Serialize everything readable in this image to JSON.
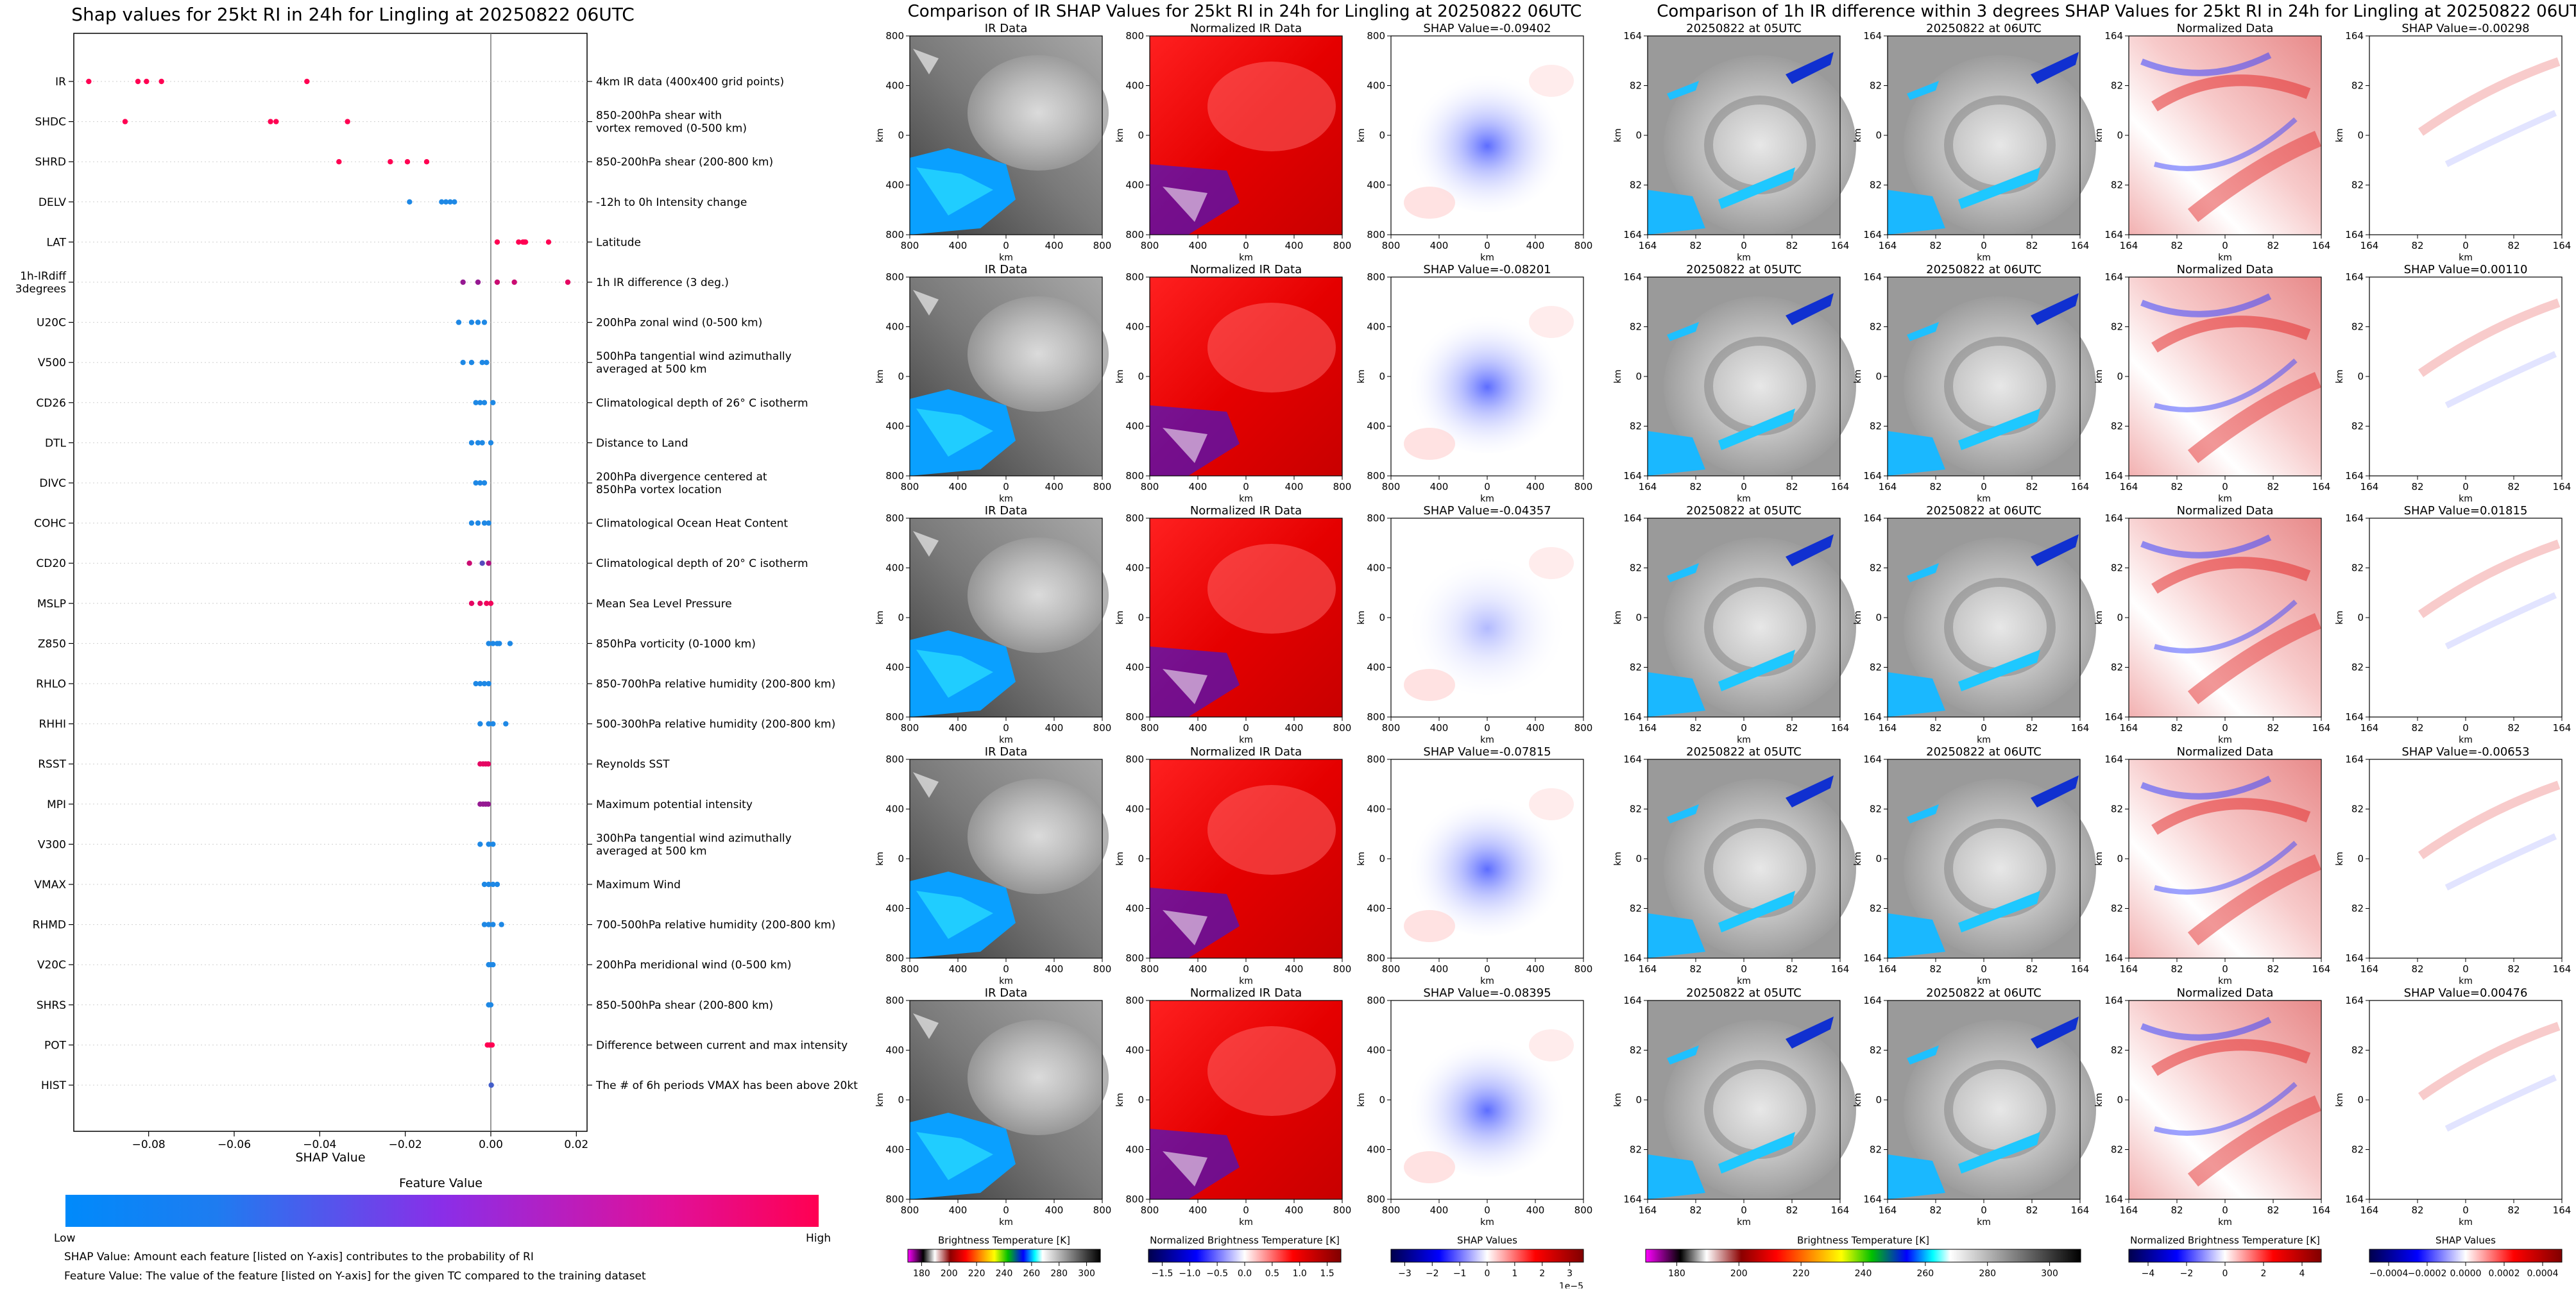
{
  "shap_panel": {
    "title": "Shap values for 25kt RI in 24h for Lingling at 20250822 06UTC",
    "xlabel": "SHAP Value",
    "colorbar_title": "Feature Value",
    "colorbar_low": "Low",
    "colorbar_high": "High",
    "note_shap": "SHAP Value: Amount each feature [listed on Y-axis] contributes to the probability of RI",
    "note_feature": "Feature Value: The value of the feature [listed on Y-axis] for the given TC compared to the training dataset",
    "colors": {
      "low": "#1e88e5",
      "mid": "#7b1fa2",
      "high": "#ff0052"
    }
  },
  "ir_panel_title": "Comparison of IR SHAP Values for 25kt RI in 24h for Lingling at 20250822 06UTC",
  "diff_panel_title": "Comparison of 1h IR difference within 3 degrees SHAP Values for 25kt RI in 24h for Lingling at 20250822 06UTC",
  "ir_columns": [
    "IR Data",
    "Normalized IR Data"
  ],
  "ir_shap_titles": [
    "SHAP Value=-0.09402",
    "SHAP Value=-0.08201",
    "SHAP Value=-0.04357",
    "SHAP Value=-0.07815",
    "SHAP Value=-0.08395"
  ],
  "ir_ticks": [
    "800",
    "400",
    "0",
    "400",
    "800"
  ],
  "diff_columns": [
    "20250822 at 05UTC",
    "20250822 at 06UTC",
    "Normalized Data"
  ],
  "diff_shap_titles": [
    "SHAP Value=-0.00298",
    "SHAP Value=0.00110",
    "SHAP Value=0.01815",
    "SHAP Value=-0.00653",
    "SHAP Value=0.00476"
  ],
  "diff_ticks": [
    "164",
    "82",
    "0",
    "82",
    "164"
  ],
  "axis_unit": "km",
  "colorbars": {
    "ir_bt": {
      "label": "Brightness Temperature [K]",
      "ticks": [
        "180",
        "200",
        "220",
        "240",
        "260",
        "280",
        "300"
      ]
    },
    "ir_norm": {
      "label": "Normalized Brightness Temperature [K]",
      "ticks": [
        "−1.5",
        "−1.0",
        "−0.5",
        "0.0",
        "0.5",
        "1.0",
        "1.5"
      ]
    },
    "ir_shap": {
      "label": "SHAP Values",
      "ticks": [
        "−3",
        "−2",
        "−1",
        "0",
        "1",
        "2",
        "3"
      ],
      "offset": "1e−5"
    },
    "diff_bt": {
      "label": "Brightness Temperature [K]",
      "ticks": [
        "180",
        "200",
        "220",
        "240",
        "260",
        "280",
        "300"
      ]
    },
    "diff_norm": {
      "label": "Normalized Brightness Temperature [K]",
      "ticks": [
        "−4",
        "−2",
        "0",
        "2",
        "4"
      ]
    },
    "diff_shap": {
      "label": "SHAP Values",
      "ticks": [
        "−0.0004",
        "−0.0002",
        "0.0000",
        "0.0002",
        "0.0004"
      ]
    }
  },
  "chart_data": {
    "type": "scatter",
    "title": "Shap values for 25kt RI in 24h for Lingling at 20250822 06UTC",
    "xlabel": "SHAP Value",
    "xlim": [
      -0.0975,
      0.0225
    ],
    "xticks": [
      -0.08,
      -0.06,
      -0.04,
      -0.02,
      0.0,
      0.02
    ],
    "xtick_labels": [
      "−0.08",
      "−0.06",
      "−0.04",
      "−0.02",
      "0.00",
      "0.02"
    ],
    "features": [
      {
        "name": "IR",
        "description": "4km IR data (400x400 grid points)",
        "x": [
          -0.094,
          -0.0825,
          -0.0805,
          -0.077,
          -0.043
        ],
        "f": [
          1,
          1,
          1,
          1,
          1
        ]
      },
      {
        "name": "SHDC",
        "description": "850-200hPa shear with\nvortex removed (0-500 km)",
        "x": [
          -0.0855,
          -0.0515,
          -0.0502,
          -0.0335
        ],
        "f": [
          1,
          1,
          1,
          1
        ]
      },
      {
        "name": "SHRD",
        "description": "850-200hPa shear (200-800 km)",
        "x": [
          -0.0355,
          -0.0235,
          -0.0195,
          -0.015
        ],
        "f": [
          1,
          1,
          1,
          1
        ]
      },
      {
        "name": "DELV",
        "description": "-12h to 0h Intensity change",
        "x": [
          -0.019,
          -0.0115,
          -0.0105,
          -0.0095,
          -0.0085
        ],
        "f": [
          0,
          0,
          0,
          0,
          0
        ]
      },
      {
        "name": "LAT",
        "description": "Latitude",
        "x": [
          0.0015,
          0.0065,
          0.0075,
          0.0078,
          0.0081,
          0.0135
        ],
        "f": [
          1,
          1,
          1,
          1,
          1,
          1
        ]
      },
      {
        "name": "1h-IRdiff\n3degrees",
        "description": "1h IR difference (3 deg.)",
        "x": [
          -0.0065,
          -0.003,
          0.0015,
          0.0055,
          0.018
        ],
        "f": [
          0.6,
          0.6,
          0.8,
          0.8,
          0.9
        ]
      },
      {
        "name": "U20C",
        "description": "200hPa zonal wind (0-500 km)",
        "x": [
          -0.0075,
          -0.0045,
          -0.003,
          -0.0015
        ],
        "f": [
          0,
          0,
          0,
          0
        ]
      },
      {
        "name": "V500",
        "description": "500hPa tangential wind azimuthally\naveraged at 500 km",
        "x": [
          -0.0065,
          -0.0045,
          -0.002,
          -0.001
        ],
        "f": [
          0,
          0,
          0,
          0
        ]
      },
      {
        "name": "CD26",
        "description": "Climatological depth of 26° C isotherm",
        "x": [
          -0.0035,
          -0.0025,
          -0.0015,
          0.0005
        ],
        "f": [
          0,
          0,
          0,
          0
        ]
      },
      {
        "name": "DTL",
        "description": "Distance to Land",
        "x": [
          -0.0045,
          -0.003,
          -0.002,
          0.0
        ],
        "f": [
          0,
          0,
          0,
          0
        ]
      },
      {
        "name": "DIVC",
        "description": "200hPa divergence centered at\n850hPa vortex location",
        "x": [
          -0.0035,
          -0.0025,
          -0.0015
        ],
        "f": [
          0,
          0,
          0
        ]
      },
      {
        "name": "COHC",
        "description": "Climatological Ocean Heat Content",
        "x": [
          -0.0045,
          -0.003,
          -0.0015,
          -0.0005
        ],
        "f": [
          0,
          0,
          0,
          0
        ]
      },
      {
        "name": "CD20",
        "description": "Climatological depth of 20° C isotherm",
        "x": [
          -0.005,
          -0.002,
          -0.0005
        ],
        "f": [
          0.8,
          0.3,
          0.7
        ]
      },
      {
        "name": "MSLP",
        "description": "Mean Sea Level Pressure",
        "x": [
          -0.0045,
          -0.0025,
          -0.001,
          0.0
        ],
        "f": [
          0.9,
          0.9,
          0.95,
          0.95
        ]
      },
      {
        "name": "Z850",
        "description": "850hPa vorticity (0-1000 km)",
        "x": [
          -0.0005,
          0.0005,
          0.0015,
          0.002,
          0.0045
        ],
        "f": [
          0,
          0,
          0,
          0,
          0
        ]
      },
      {
        "name": "RHLO",
        "description": "850-700hPa relative humidity (200-800 km)",
        "x": [
          -0.0035,
          -0.0025,
          -0.0015,
          -0.0005
        ],
        "f": [
          0,
          0,
          0,
          0
        ]
      },
      {
        "name": "RHHI",
        "description": "500-300hPa relative humidity (200-800 km)",
        "x": [
          -0.0025,
          -0.0005,
          0.0005,
          0.0035
        ],
        "f": [
          0,
          0,
          0,
          0
        ]
      },
      {
        "name": "RSST",
        "description": "Reynolds SST",
        "x": [
          -0.0025,
          -0.0018,
          -0.0012,
          -0.0006
        ],
        "f": [
          0.9,
          0.9,
          0.9,
          0.9
        ]
      },
      {
        "name": "MPI",
        "description": "Maximum potential intensity",
        "x": [
          -0.0025,
          -0.0018,
          -0.0012,
          -0.0006
        ],
        "f": [
          0.6,
          0.6,
          0.6,
          0.6
        ]
      },
      {
        "name": "V300",
        "description": "300hPa tangential wind azimuthally\naveraged at 500 km",
        "x": [
          -0.0025,
          -0.0005,
          0.0005
        ],
        "f": [
          0,
          0,
          0
        ]
      },
      {
        "name": "VMAX",
        "description": "Maximum Wind",
        "x": [
          -0.0015,
          -0.0005,
          0.0005,
          0.0015
        ],
        "f": [
          0,
          0,
          0,
          0
        ]
      },
      {
        "name": "RHMD",
        "description": "700-500hPa relative humidity (200-800 km)",
        "x": [
          -0.0015,
          -0.0005,
          0.0005,
          0.0025
        ],
        "f": [
          0,
          0,
          0,
          0
        ]
      },
      {
        "name": "V20C",
        "description": "200hPa meridional wind (0-500 km)",
        "x": [
          -0.0005,
          0.0,
          0.0005
        ],
        "f": [
          0,
          0,
          0
        ]
      },
      {
        "name": "SHRS",
        "description": "850-500hPa shear (200-800 km)",
        "x": [
          -0.0005,
          0.0
        ],
        "f": [
          0,
          0
        ]
      },
      {
        "name": "POT",
        "description": "Difference between current and max intensity",
        "x": [
          -0.0008,
          -0.0003,
          0.0003
        ],
        "f": [
          1,
          1,
          1
        ]
      },
      {
        "name": "HIST",
        "description": "The # of 6h periods VMAX has been above 20kt",
        "x": [
          0.0001
        ],
        "f": [
          0.2
        ]
      }
    ]
  }
}
